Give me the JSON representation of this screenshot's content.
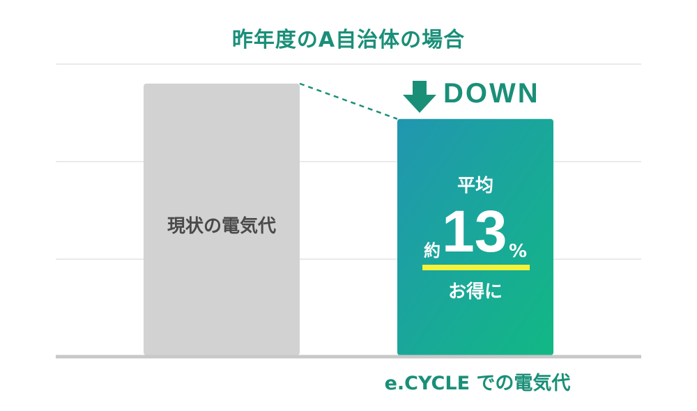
{
  "chart_data": {
    "type": "bar",
    "title": "昨年度のA自治体の場合",
    "categories": [
      "現状の電気代",
      "e.CYCLE での電気代"
    ],
    "values": [
      100,
      87
    ],
    "ylim": [
      0,
      100
    ],
    "grid": true,
    "change_label": "DOWN",
    "savings": {
      "prefix": "平均",
      "approx": "約",
      "value": "13",
      "unit": "%",
      "suffix": "お得に"
    }
  },
  "colors": {
    "accent": "#1a8f78",
    "bar_current": "#d2d2d2",
    "bar_new_top": "#2196b0",
    "bar_new_bottom": "#12b884",
    "highlight": "#f4f23a",
    "grid": "#e4e4e4",
    "axis": "#c8c8c8"
  }
}
